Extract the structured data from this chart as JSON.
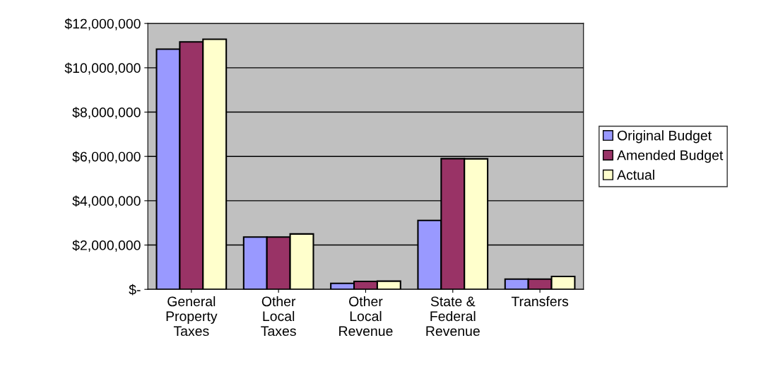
{
  "chart_data": {
    "type": "bar",
    "categories": [
      "General\nProperty\nTaxes",
      "Other\nLocal\nTaxes",
      "Other\nLocal\nRevenue",
      "State &\nFederal\nRevenue",
      "Transfers"
    ],
    "series": [
      {
        "name": "Original Budget",
        "color": "#9999ff",
        "values": [
          10840000,
          2360000,
          270000,
          3110000,
          460000
        ]
      },
      {
        "name": "Amended Budget",
        "color": "#993366",
        "values": [
          11170000,
          2360000,
          360000,
          5900000,
          460000
        ]
      },
      {
        "name": "Actual",
        "color": "#ffffcc",
        "values": [
          11290000,
          2500000,
          370000,
          5890000,
          580000
        ]
      }
    ],
    "ylim": [
      0,
      12000000
    ],
    "yticks": [
      {
        "value": 0,
        "label": "$-"
      },
      {
        "value": 2000000,
        "label": "$2,000,000"
      },
      {
        "value": 4000000,
        "label": "$4,000,000"
      },
      {
        "value": 6000000,
        "label": "$6,000,000"
      },
      {
        "value": 8000000,
        "label": "$8,000,000"
      },
      {
        "value": 10000000,
        "label": "$10,000,000"
      },
      {
        "value": 12000000,
        "label": "$12,000,000"
      }
    ],
    "grid": "y",
    "legend": "right"
  }
}
